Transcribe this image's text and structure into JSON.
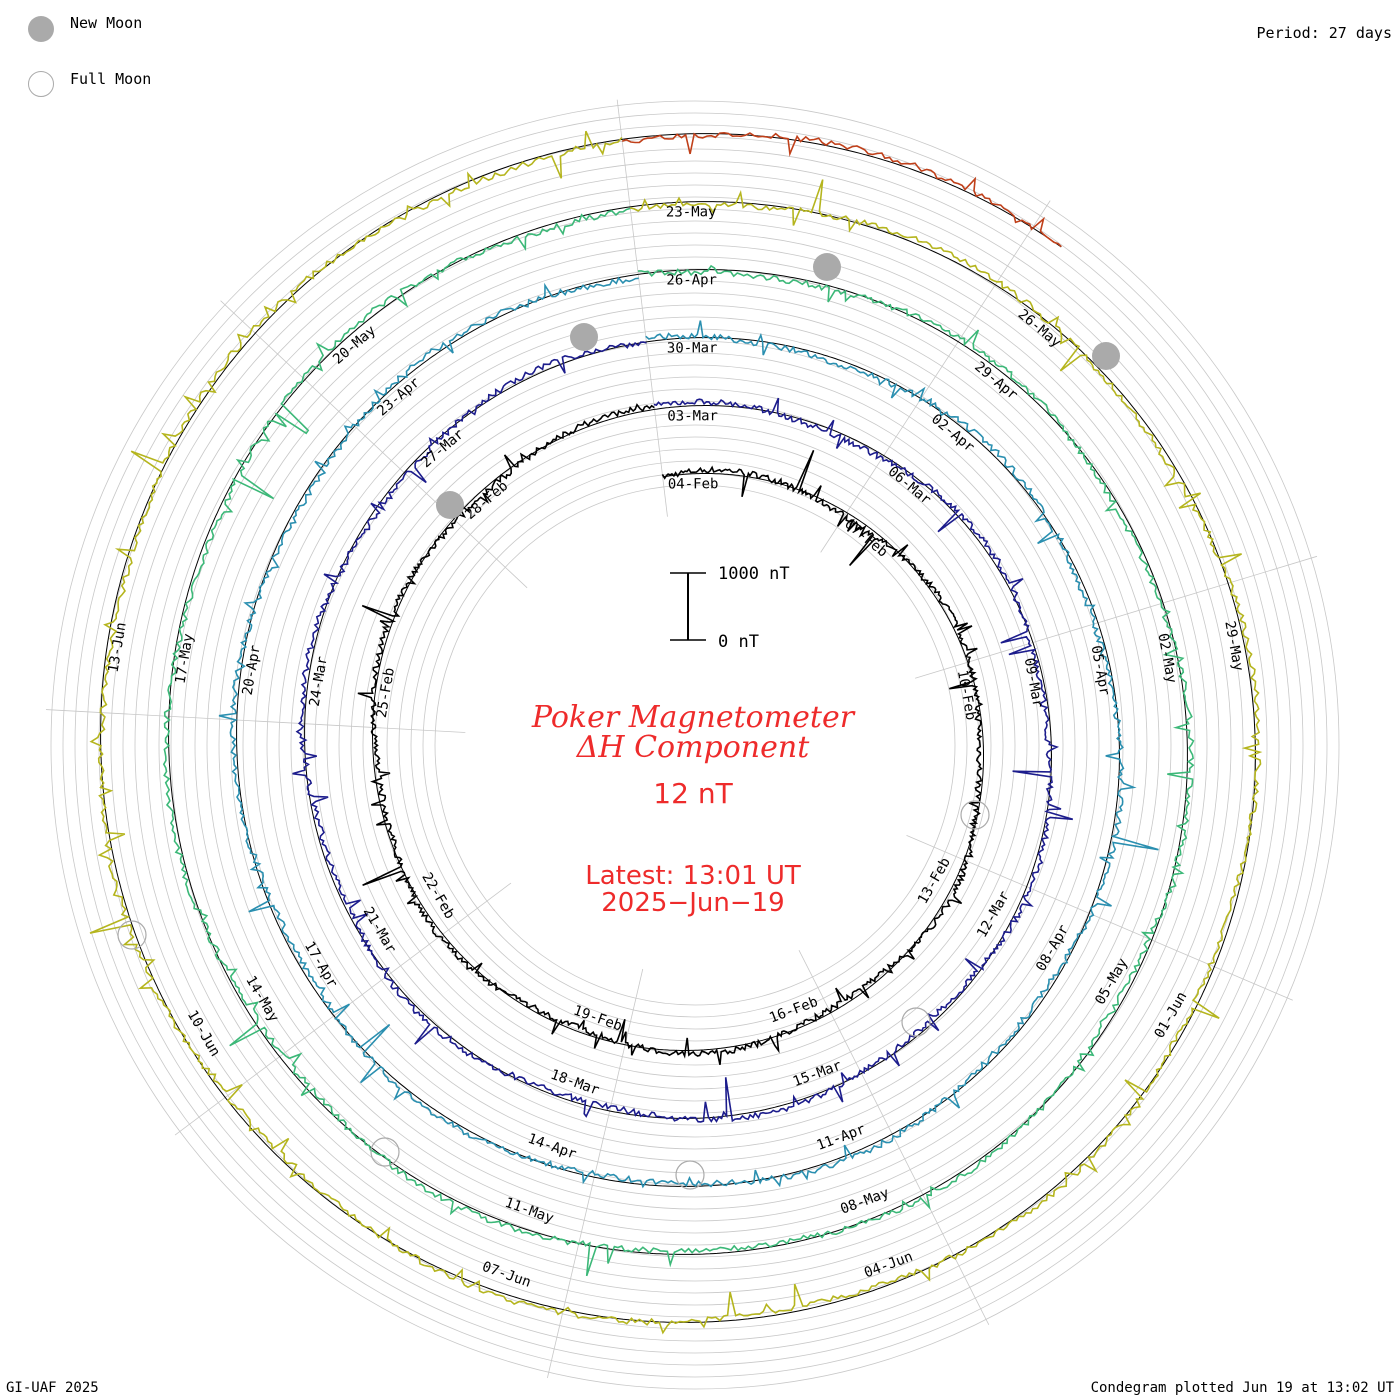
{
  "legend": {
    "new_moon_label": "New Moon",
    "full_moon_label": "Full Moon"
  },
  "period_label": "Period: 27 days",
  "footer_left": "GI-UAF 2025",
  "footer_right": "Condegram plotted Jun 19 at 13:02 UT",
  "colors": {
    "new_moon": "#aaaaaa",
    "title": "#ee2b2b",
    "grid": "#c8c8c8",
    "baseline": "#000000"
  },
  "chart_data": {
    "type": "line",
    "title_line1": "Poker Magnetometer",
    "title_line2": "ΔH Component",
    "value_text": "12 nT",
    "latest_line1": "Latest: 13:01 UT",
    "latest_line2": "2025−Jun−19",
    "scale_bar": {
      "top_label": "1000 nT",
      "bottom_label": "0 nT",
      "top_value": 1000,
      "bottom_value": 0
    },
    "period_days": 27,
    "revolutions": [
      {
        "start": "04-Feb",
        "color": "#000000",
        "labels": [
          "04-Feb",
          "07-Feb",
          "10-Feb",
          "13-Feb",
          "16-Feb",
          "19-Feb",
          "22-Feb",
          "25-Feb",
          "28-Feb"
        ]
      },
      {
        "start": "03-Mar",
        "color": "#1c1c8c",
        "labels": [
          "03-Mar",
          "06-Mar",
          "09-Mar",
          "12-Mar",
          "15-Mar",
          "18-Mar",
          "21-Mar",
          "24-Mar",
          "27-Mar"
        ]
      },
      {
        "start": "30-Mar",
        "color": "#2a8fb0",
        "labels": [
          "30-Mar",
          "02-Apr",
          "05-Apr",
          "08-Apr",
          "11-Apr",
          "14-Apr",
          "17-Apr",
          "20-Apr",
          "23-Apr"
        ]
      },
      {
        "start": "26-Apr",
        "color": "#3cb878",
        "labels": [
          "26-Apr",
          "29-Apr",
          "02-May",
          "05-May",
          "08-May",
          "11-May",
          "14-May",
          "17-May",
          "20-May"
        ]
      },
      {
        "start": "23-May",
        "color": "#b5b51e",
        "labels": [
          "23-May",
          "26-May",
          "29-May",
          "01-Jun",
          "04-Jun",
          "07-Jun",
          "10-Jun",
          "13-Jun"
        ]
      },
      {
        "start": "16-Jun",
        "color": "#c0401a",
        "labels": []
      }
    ],
    "new_moon_dates": [
      "28-Feb",
      "29-Mar",
      "27-Apr",
      "27-May"
    ],
    "full_moon_dates": [
      "14-Mar",
      "13-Apr",
      "12-May",
      "11-Jun"
    ],
    "grid": true
  }
}
